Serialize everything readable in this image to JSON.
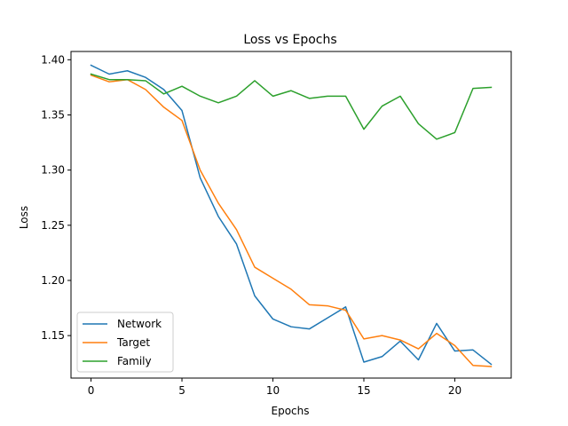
{
  "chart_data": {
    "type": "line",
    "title": "Loss vs Epochs",
    "xlabel": "Epochs",
    "ylabel": "Loss",
    "xlim": [
      -1.1,
      23.1
    ],
    "ylim": [
      1.1115,
      1.4075
    ],
    "xticks": [
      0,
      5,
      10,
      15,
      20
    ],
    "xtick_labels": [
      "0",
      "5",
      "10",
      "15",
      "20"
    ],
    "yticks": [
      1.15,
      1.2,
      1.25,
      1.3,
      1.35,
      1.4
    ],
    "ytick_labels": [
      "1.15",
      "1.20",
      "1.25",
      "1.30",
      "1.35",
      "1.40"
    ],
    "grid": false,
    "legend_position": "lower-left",
    "x": [
      0,
      1,
      2,
      3,
      4,
      5,
      6,
      7,
      8,
      9,
      10,
      11,
      12,
      13,
      14,
      15,
      16,
      17,
      18,
      19,
      20,
      21,
      22
    ],
    "series": [
      {
        "name": "Network",
        "color": "#1f77b4",
        "values": [
          1.395,
          1.387,
          1.39,
          1.384,
          1.373,
          1.354,
          1.293,
          1.258,
          1.233,
          1.186,
          1.165,
          1.158,
          1.156,
          1.166,
          1.176,
          1.126,
          1.131,
          1.145,
          1.128,
          1.161,
          1.136,
          1.137,
          1.124
        ]
      },
      {
        "name": "Target",
        "color": "#ff7f0e",
        "values": [
          1.386,
          1.38,
          1.382,
          1.373,
          1.357,
          1.345,
          1.3,
          1.27,
          1.246,
          1.212,
          1.202,
          1.192,
          1.178,
          1.177,
          1.173,
          1.147,
          1.15,
          1.146,
          1.138,
          1.152,
          1.141,
          1.123,
          1.122
        ]
      },
      {
        "name": "Family",
        "color": "#2ca02c",
        "values": [
          1.387,
          1.382,
          1.382,
          1.381,
          1.369,
          1.376,
          1.367,
          1.361,
          1.367,
          1.381,
          1.367,
          1.372,
          1.365,
          1.367,
          1.367,
          1.337,
          1.358,
          1.367,
          1.342,
          1.328,
          1.334,
          1.374,
          1.375
        ]
      }
    ]
  }
}
